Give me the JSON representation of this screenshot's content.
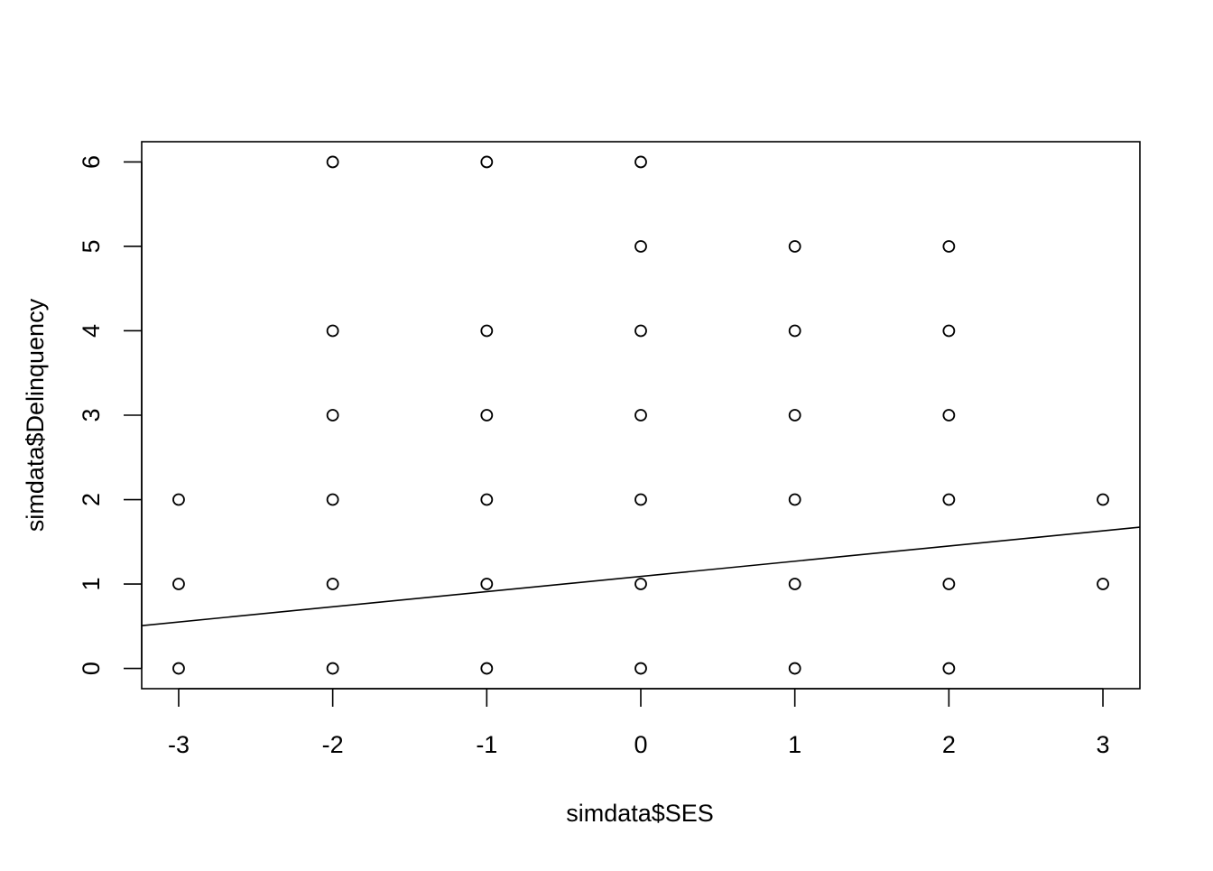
{
  "chart_data": {
    "type": "scatter",
    "title": "",
    "xlabel": "simdata$SES",
    "ylabel": "simdata$Delinquency",
    "xlim": [
      -3.24,
      3.24
    ],
    "ylim": [
      -0.24,
      6.24
    ],
    "x_ticks": [
      -3,
      -2,
      -1,
      0,
      1,
      2,
      3
    ],
    "y_ticks": [
      0,
      1,
      2,
      3,
      4,
      5,
      6
    ],
    "x_tick_labels": [
      "-3",
      "-2",
      "-1",
      "0",
      "1",
      "2",
      "3"
    ],
    "y_tick_labels": [
      "0",
      "1",
      "2",
      "3",
      "4",
      "5",
      "6"
    ],
    "grid": false,
    "points": [
      {
        "x": -3,
        "y": 0
      },
      {
        "x": -3,
        "y": 1
      },
      {
        "x": -3,
        "y": 2
      },
      {
        "x": -2,
        "y": 0
      },
      {
        "x": -2,
        "y": 1
      },
      {
        "x": -2,
        "y": 2
      },
      {
        "x": -2,
        "y": 3
      },
      {
        "x": -2,
        "y": 4
      },
      {
        "x": -2,
        "y": 6
      },
      {
        "x": -1,
        "y": 0
      },
      {
        "x": -1,
        "y": 1
      },
      {
        "x": -1,
        "y": 2
      },
      {
        "x": -1,
        "y": 3
      },
      {
        "x": -1,
        "y": 4
      },
      {
        "x": -1,
        "y": 6
      },
      {
        "x": 0,
        "y": 0
      },
      {
        "x": 0,
        "y": 1
      },
      {
        "x": 0,
        "y": 2
      },
      {
        "x": 0,
        "y": 3
      },
      {
        "x": 0,
        "y": 4
      },
      {
        "x": 0,
        "y": 5
      },
      {
        "x": 0,
        "y": 6
      },
      {
        "x": 1,
        "y": 0
      },
      {
        "x": 1,
        "y": 1
      },
      {
        "x": 1,
        "y": 2
      },
      {
        "x": 1,
        "y": 3
      },
      {
        "x": 1,
        "y": 4
      },
      {
        "x": 1,
        "y": 5
      },
      {
        "x": 2,
        "y": 0
      },
      {
        "x": 2,
        "y": 1
      },
      {
        "x": 2,
        "y": 2
      },
      {
        "x": 2,
        "y": 3
      },
      {
        "x": 2,
        "y": 4
      },
      {
        "x": 2,
        "y": 5
      },
      {
        "x": 3,
        "y": 1
      },
      {
        "x": 3,
        "y": 2
      }
    ],
    "regression_line": {
      "intercept": 1.09,
      "slope": 0.18
    },
    "colors": {
      "foreground": "#000000",
      "background": "#ffffff"
    }
  }
}
